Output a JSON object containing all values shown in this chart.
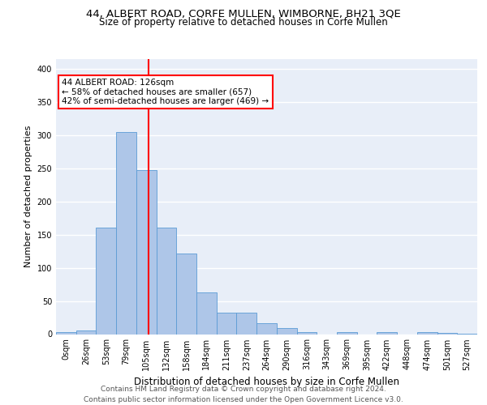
{
  "title1": "44, ALBERT ROAD, CORFE MULLEN, WIMBORNE, BH21 3QE",
  "title2": "Size of property relative to detached houses in Corfe Mullen",
  "xlabel": "Distribution of detached houses by size in Corfe Mullen",
  "ylabel": "Number of detached properties",
  "bin_labels": [
    "0sqm",
    "26sqm",
    "53sqm",
    "79sqm",
    "105sqm",
    "132sqm",
    "158sqm",
    "184sqm",
    "211sqm",
    "237sqm",
    "264sqm",
    "290sqm",
    "316sqm",
    "343sqm",
    "369sqm",
    "395sqm",
    "422sqm",
    "448sqm",
    "474sqm",
    "501sqm",
    "527sqm"
  ],
  "bar_heights": [
    3,
    5,
    160,
    305,
    247,
    160,
    121,
    63,
    32,
    32,
    16,
    9,
    3,
    0,
    3,
    0,
    3,
    0,
    3,
    2,
    1
  ],
  "bar_color": "#aec6e8",
  "bar_edge_color": "#5b9bd5",
  "vline_x": 4.62,
  "annotation_text": "44 ALBERT ROAD: 126sqm\n← 58% of detached houses are smaller (657)\n42% of semi-detached houses are larger (469) →",
  "annotation_box_color": "white",
  "annotation_box_edge_color": "red",
  "vline_color": "red",
  "ylim": [
    0,
    415
  ],
  "yticks": [
    0,
    50,
    100,
    150,
    200,
    250,
    300,
    350,
    400
  ],
  "footer_line1": "Contains HM Land Registry data © Crown copyright and database right 2024.",
  "footer_line2": "Contains public sector information licensed under the Open Government Licence v3.0.",
  "bg_color": "#e8eef8",
  "grid_color": "white",
  "title1_fontsize": 9.5,
  "title2_fontsize": 8.5,
  "xlabel_fontsize": 8.5,
  "ylabel_fontsize": 8.0,
  "tick_fontsize": 7,
  "annot_fontsize": 7.5,
  "footer_fontsize": 6.5
}
